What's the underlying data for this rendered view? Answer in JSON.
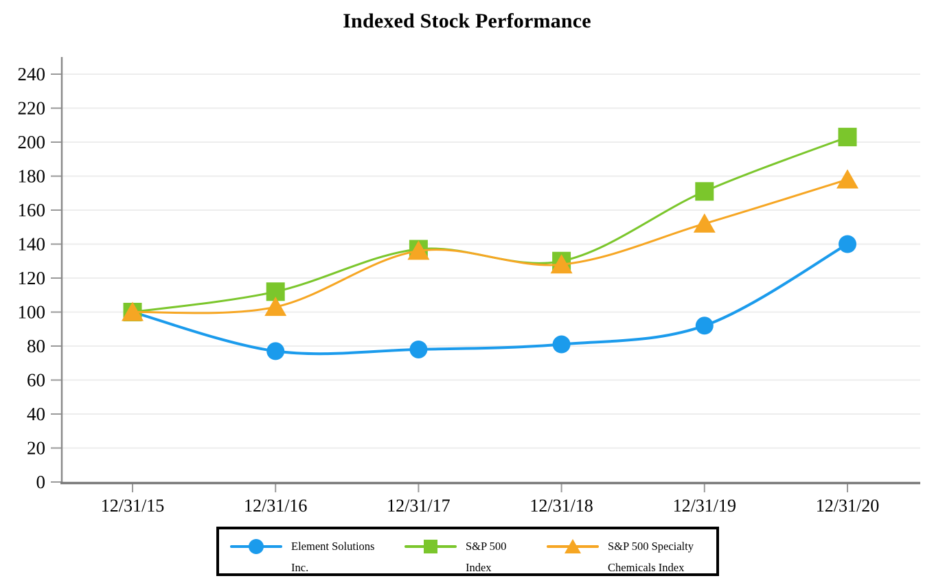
{
  "page_title": "Indexed Stock Performance",
  "chart_data": {
    "type": "line",
    "title": "Indexed Stock Performance",
    "x_categories": [
      "12/31/15",
      "12/31/16",
      "12/31/17",
      "12/31/18",
      "12/31/19",
      "12/31/20"
    ],
    "series": [
      {
        "name": "Element Solutions Inc.",
        "marker": "circle",
        "color": "#1B9BEC",
        "values": [
          100,
          77,
          78,
          81,
          92,
          140
        ]
      },
      {
        "name": "S&P 500 Index",
        "marker": "square",
        "color": "#7BC62C",
        "values": [
          100,
          112,
          137,
          130,
          171,
          203
        ]
      },
      {
        "name": "S&P 500 Specialty Chemicals Index",
        "marker": "triangle",
        "color": "#F6A623",
        "values": [
          100,
          103,
          136,
          128,
          152,
          178
        ]
      }
    ],
    "ylim": [
      0,
      240
    ],
    "ytick_step": 20,
    "yticks": [
      0,
      20,
      40,
      60,
      80,
      100,
      120,
      140,
      160,
      180,
      200,
      220,
      240
    ],
    "grid": "horizontal",
    "legend_position": "bottom"
  },
  "colors": {
    "grid": "#EDEDED",
    "axis_y": "#8A8A8A",
    "axis_x": "#7A7A7A",
    "tick": "#999999",
    "text": "#000000",
    "legend_border": "#000000"
  }
}
